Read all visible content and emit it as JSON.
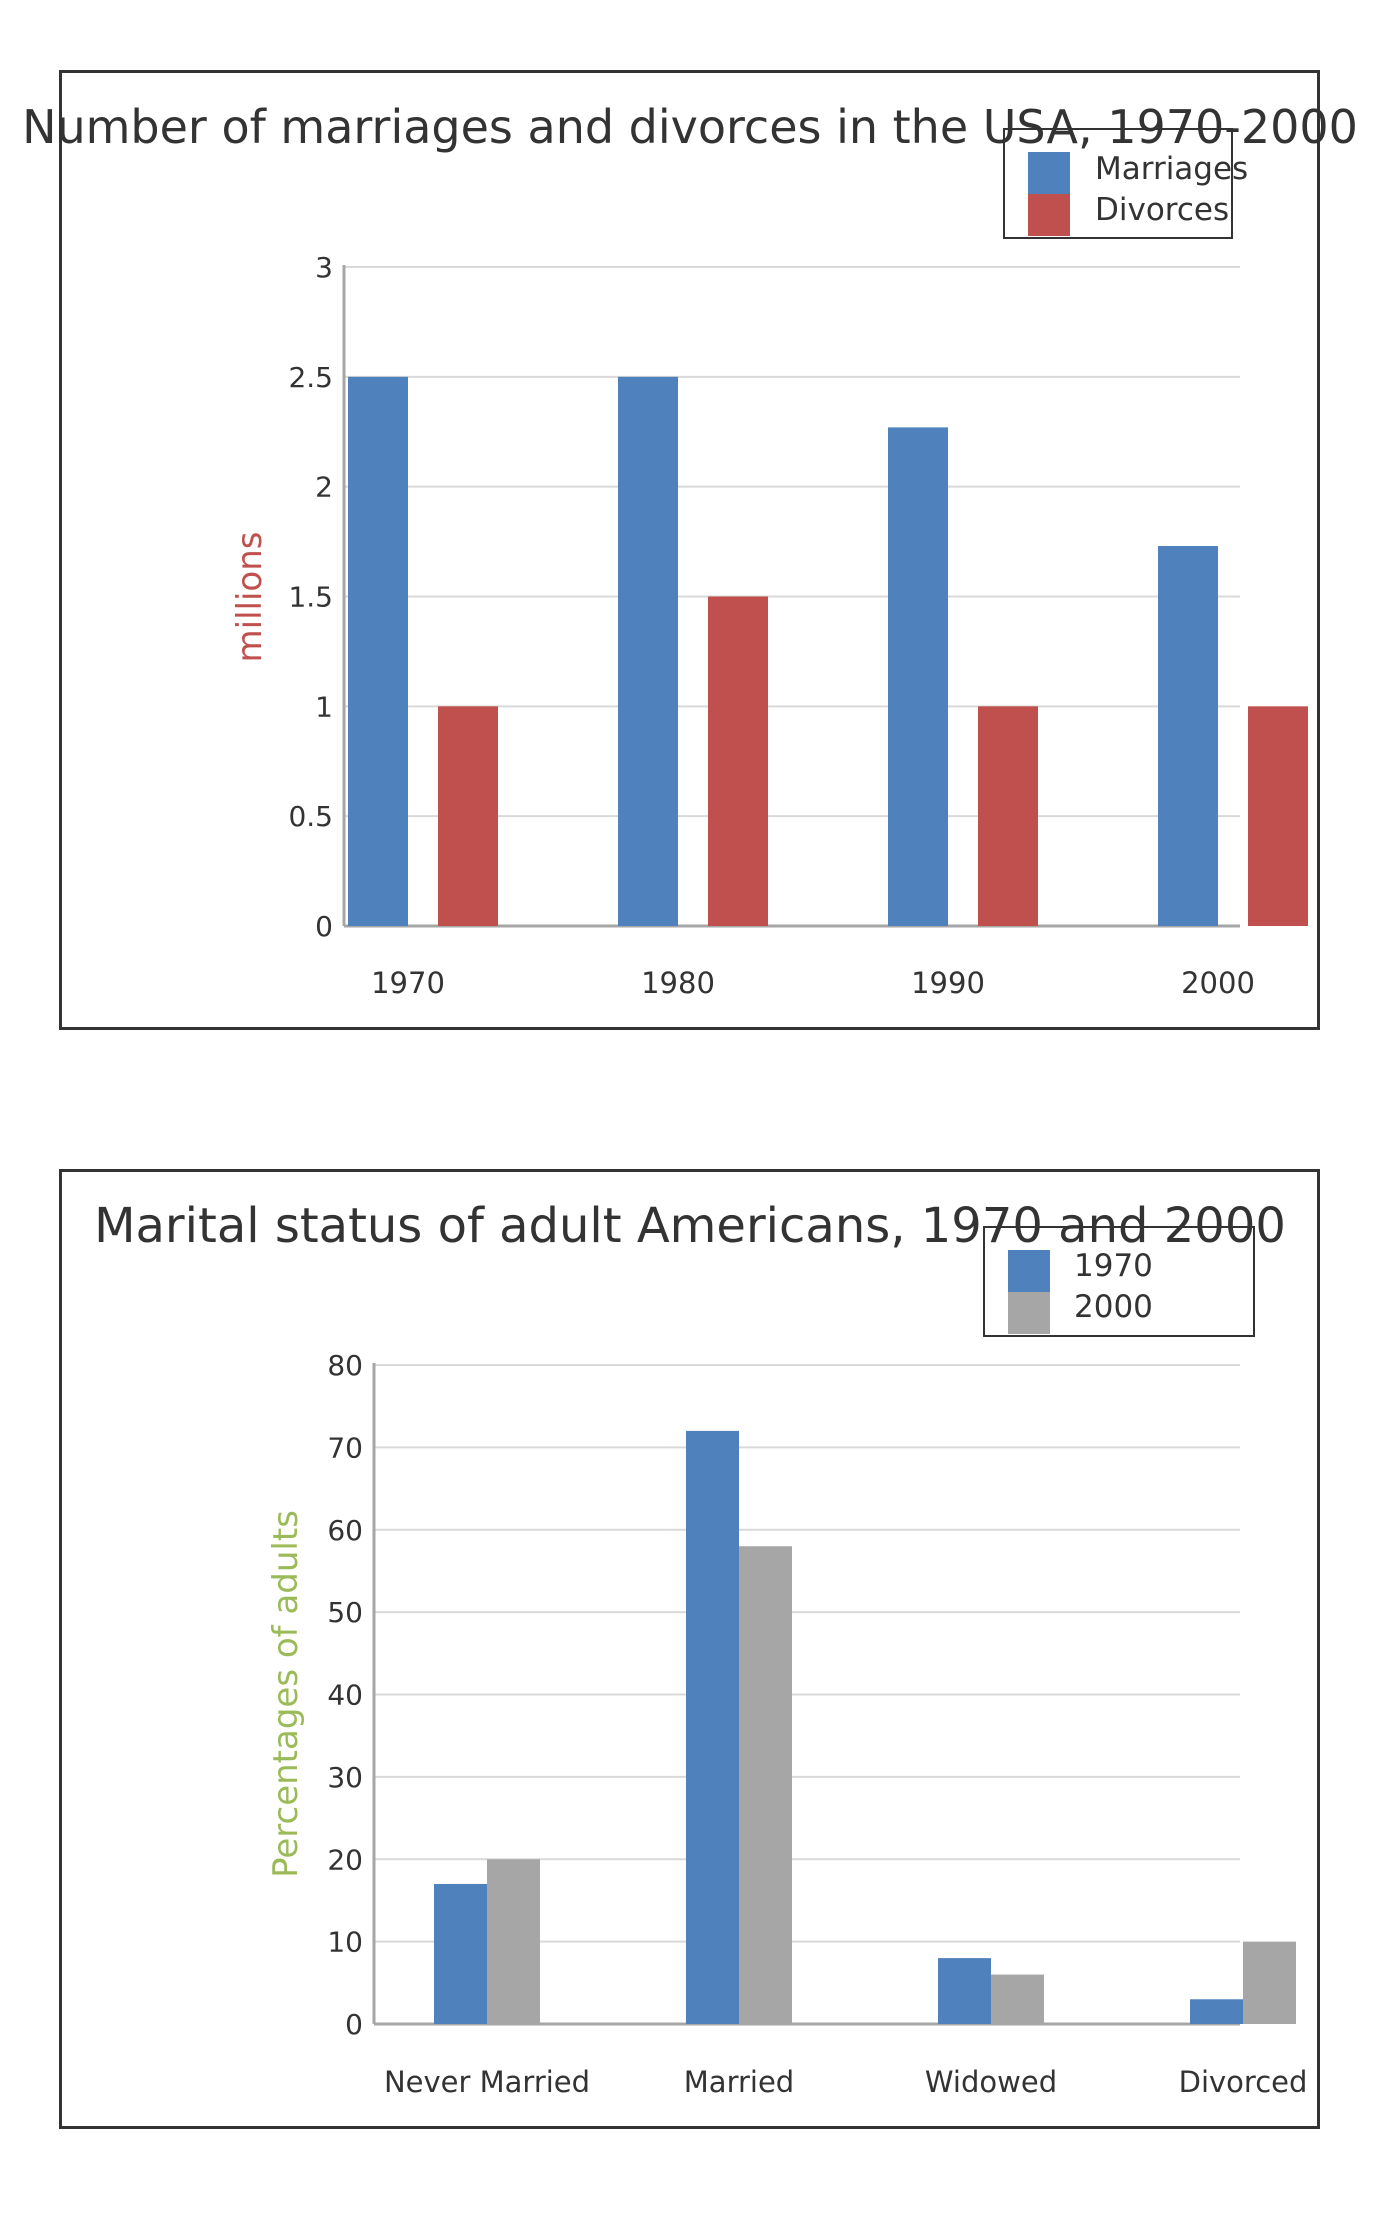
{
  "chart_data": [
    {
      "type": "bar",
      "title": "Number of marriages and divorces in the USA, 1970-2000",
      "ylabel": "millions",
      "ylabel_color": "#c0504d",
      "categories": [
        "1970",
        "1980",
        "1990",
        "2000"
      ],
      "series": [
        {
          "name": "Marriages",
          "color": "#4f81bd",
          "values": [
            2.5,
            2.5,
            2.27,
            1.73
          ]
        },
        {
          "name": "Divorces",
          "color": "#c0504d",
          "values": [
            1.0,
            1.5,
            1.0,
            1.0
          ]
        }
      ],
      "ylim": [
        0,
        3
      ],
      "yticks": [
        "0",
        "0.5",
        "1",
        "1.5",
        "2",
        "2.5",
        "3"
      ],
      "grid": true,
      "legend": "top-right"
    },
    {
      "type": "bar",
      "title": "Marital status of adult Americans, 1970 and 2000",
      "ylabel": "Percentages of adults",
      "ylabel_color": "#9bbb59",
      "categories": [
        "Never Married",
        "Married",
        "Widowed",
        "Divorced"
      ],
      "series": [
        {
          "name": "1970",
          "color": "#4f81bd",
          "values": [
            17,
            72,
            8,
            3
          ]
        },
        {
          "name": "2000",
          "color": "#a6a6a6",
          "values": [
            20,
            58,
            6,
            10
          ]
        }
      ],
      "ylim": [
        0,
        80
      ],
      "yticks": [
        "0",
        "10",
        "20",
        "30",
        "40",
        "50",
        "60",
        "70",
        "80"
      ],
      "grid": true,
      "legend": "top-right"
    }
  ]
}
